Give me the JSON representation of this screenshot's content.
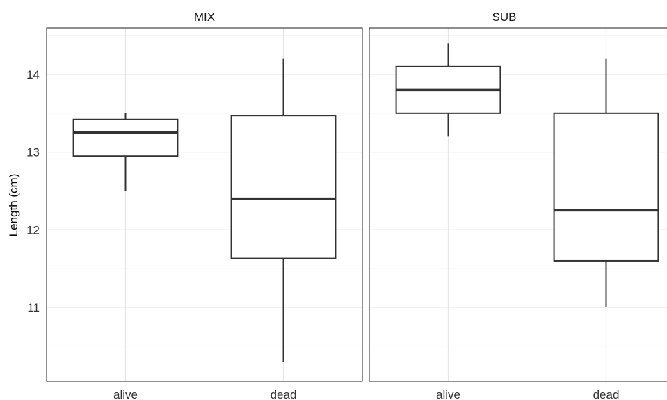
{
  "chart_data": {
    "type": "boxplot",
    "ylabel": "Length (cm)",
    "ylim": [
      10.05,
      14.6
    ],
    "yticks": [
      11,
      12,
      13,
      14
    ],
    "categories": [
      "alive",
      "dead"
    ],
    "grid": true,
    "panels": [
      {
        "title": "MIX",
        "boxes": [
          {
            "category": "alive",
            "min": 12.5,
            "q1": 12.95,
            "median": 13.25,
            "q3": 13.42,
            "max": 13.5
          },
          {
            "category": "dead",
            "min": 10.3,
            "q1": 11.63,
            "median": 12.4,
            "q3": 13.47,
            "max": 14.2
          }
        ]
      },
      {
        "title": "SUB",
        "boxes": [
          {
            "category": "alive",
            "min": 13.2,
            "q1": 13.5,
            "median": 13.8,
            "q3": 14.1,
            "max": 14.4
          },
          {
            "category": "dead",
            "min": 11.0,
            "q1": 11.6,
            "median": 12.25,
            "q3": 13.5,
            "max": 14.2
          }
        ]
      }
    ]
  }
}
